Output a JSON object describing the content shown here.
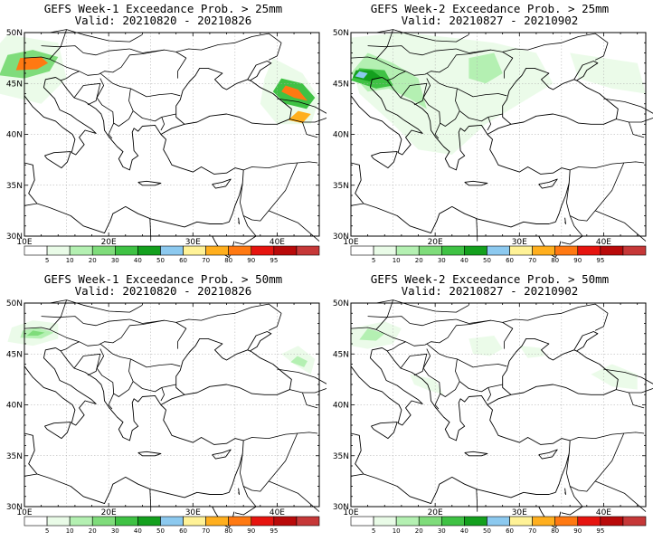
{
  "panels": [
    {
      "id": "w1-25",
      "title": "GEFS Week-1 Exceedance Prob. > 25mm",
      "valid": "Valid: 20210820 - 20210826",
      "areas": [
        {
          "pts": [
            [
              5,
              47
            ],
            [
              7,
              44
            ],
            [
              12,
              43
            ],
            [
              15,
              45.5
            ],
            [
              14,
              49
            ],
            [
              8,
              49.8
            ]
          ],
          "level": 1
        },
        {
          "pts": [
            [
              7,
              45.8
            ],
            [
              10,
              45.5
            ],
            [
              13,
              46.2
            ],
            [
              14,
              47.6
            ],
            [
              11,
              48.3
            ],
            [
              8,
              47.8
            ]
          ],
          "level": 3
        },
        {
          "pts": [
            [
              9,
              46.3
            ],
            [
              11.5,
              46.4
            ],
            [
              12.8,
              47
            ],
            [
              12,
              47.6
            ],
            [
              9.5,
              47.5
            ]
          ],
          "level": 9
        },
        {
          "pts": [
            [
              38,
              43
            ],
            [
              40,
              41
            ],
            [
              44,
              41
            ],
            [
              45,
              43.5
            ],
            [
              43,
              46
            ],
            [
              39.5,
              47.5
            ],
            [
              38.5,
              45.5
            ]
          ],
          "level": 1
        },
        {
          "pts": [
            [
              39.5,
              44.2
            ],
            [
              41,
              43
            ],
            [
              43.5,
              42.5
            ],
            [
              44.5,
              43.6
            ],
            [
              43,
              45
            ],
            [
              40.5,
              45.5
            ]
          ],
          "level": 4
        },
        {
          "pts": [
            [
              40.5,
              44.2
            ],
            [
              42,
              43.6
            ],
            [
              43.6,
              43.3
            ],
            [
              42.5,
              44.4
            ],
            [
              41,
              44.8
            ]
          ],
          "level": 9
        },
        {
          "pts": [
            [
              41.3,
              41.4
            ],
            [
              43,
              41.1
            ],
            [
              44,
              42
            ],
            [
              42.5,
              42.3
            ]
          ],
          "level": 8
        }
      ]
    },
    {
      "id": "w2-25",
      "title": "GEFS Week-2 Exceedance Prob. > 25mm",
      "valid": "Valid: 20210827 - 20210902",
      "areas": [
        {
          "pts": [
            [
              10,
              49.5
            ],
            [
              16,
              50
            ],
            [
              22,
              49.5
            ],
            [
              27,
              49
            ],
            [
              32,
              48
            ],
            [
              34,
              45
            ],
            [
              30,
              43
            ],
            [
              26,
              41
            ],
            [
              22,
              38
            ],
            [
              18,
              38.5
            ],
            [
              15,
              41
            ],
            [
              11,
              44
            ],
            [
              10,
              47
            ]
          ],
          "level": 1
        },
        {
          "pts": [
            [
              36,
              48
            ],
            [
              40,
              47.5
            ],
            [
              44,
              47
            ],
            [
              45,
              44
            ],
            [
              41,
              44.5
            ],
            [
              37,
              45.5
            ]
          ],
          "level": 1
        },
        {
          "pts": [
            [
              10,
              46
            ],
            [
              12,
              44.2
            ],
            [
              14.5,
              44.5
            ],
            [
              17,
              43.5
            ],
            [
              19,
              42.5
            ],
            [
              18,
              45.5
            ],
            [
              15,
              47
            ],
            [
              12,
              48
            ]
          ],
          "level": 2
        },
        {
          "pts": [
            [
              24,
              47.5
            ],
            [
              27,
              48
            ],
            [
              28,
              46
            ],
            [
              26,
              45
            ],
            [
              24,
              45.5
            ]
          ],
          "level": 2
        },
        {
          "pts": [
            [
              10,
              45.3
            ],
            [
              13,
              44.5
            ],
            [
              15,
              44.8
            ],
            [
              14,
              46.3
            ],
            [
              11,
              46.5
            ]
          ],
          "level": 4
        },
        {
          "pts": [
            [
              10.2,
              45.6
            ],
            [
              12.2,
              45.2
            ],
            [
              13.6,
              45.6
            ],
            [
              12.5,
              46.3
            ],
            [
              10.6,
              46.3
            ]
          ],
          "level": 5
        },
        {
          "pts": [
            [
              10.5,
              45.7
            ],
            [
              11.5,
              45.5
            ],
            [
              12,
              46
            ],
            [
              11,
              46.2
            ]
          ],
          "level": 6
        }
      ]
    },
    {
      "id": "w1-50",
      "title": "GEFS Week-1 Exceedance Prob. > 50mm",
      "valid": "Valid: 20210820 - 20210826",
      "areas": [
        {
          "pts": [
            [
              8,
              46.2
            ],
            [
              11,
              45.8
            ],
            [
              14,
              46.5
            ],
            [
              14,
              48
            ],
            [
              11,
              48.3
            ],
            [
              8.5,
              47.6
            ]
          ],
          "level": 1
        },
        {
          "pts": [
            [
              9.5,
              46.6
            ],
            [
              12,
              46.5
            ],
            [
              13.5,
              47.1
            ],
            [
              11.5,
              47.6
            ],
            [
              9.8,
              47.3
            ]
          ],
          "level": 2
        },
        {
          "pts": [
            [
              10.3,
              46.8
            ],
            [
              11.6,
              46.8
            ],
            [
              12.4,
              47.1
            ],
            [
              11,
              47.3
            ]
          ],
          "level": 3
        },
        {
          "pts": [
            [
              40.5,
              45
            ],
            [
              42,
              44
            ],
            [
              44,
              43
            ],
            [
              44.5,
              44.5
            ],
            [
              42.5,
              45.8
            ]
          ],
          "level": 1
        },
        {
          "pts": [
            [
              41.6,
              44.2
            ],
            [
              43.2,
              43.7
            ],
            [
              43.6,
              44.3
            ],
            [
              42.4,
              44.8
            ]
          ],
          "level": 2
        }
      ]
    },
    {
      "id": "w2-50",
      "title": "GEFS Week-2 Exceedance Prob. > 50mm",
      "valid": "Valid: 20210827 - 20210902",
      "areas": [
        {
          "pts": [
            [
              10,
              47.5
            ],
            [
              14,
              48.2
            ],
            [
              16,
              47.5
            ],
            [
              15,
              46
            ],
            [
              12,
              45.5
            ],
            [
              10,
              45.8
            ]
          ],
          "level": 1
        },
        {
          "pts": [
            [
              17,
              43
            ],
            [
              20,
              42.5
            ],
            [
              21,
              41
            ],
            [
              19,
              41.5
            ],
            [
              17.5,
              42
            ]
          ],
          "level": 1
        },
        {
          "pts": [
            [
              24,
              46.5
            ],
            [
              27,
              46.8
            ],
            [
              28,
              45.5
            ],
            [
              26.5,
              44.8
            ],
            [
              24.5,
              45
            ]
          ],
          "level": 1
        },
        {
          "pts": [
            [
              30,
              45.8
            ],
            [
              32.5,
              45.6
            ],
            [
              33,
              44.8
            ],
            [
              31,
              44.6
            ]
          ],
          "level": 1
        },
        {
          "pts": [
            [
              38.5,
              43
            ],
            [
              41,
              41.8
            ],
            [
              44,
              41.5
            ],
            [
              44,
              43
            ],
            [
              41,
              44
            ]
          ],
          "level": 1
        },
        {
          "pts": [
            [
              11,
              46.4
            ],
            [
              13,
              46.3
            ],
            [
              14,
              47
            ],
            [
              12,
              47.5
            ]
          ],
          "level": 2
        }
      ]
    }
  ],
  "map": {
    "lon_range": [
      10,
      45
    ],
    "lat_range": [
      30,
      50
    ],
    "lon_ticks": [
      "10E",
      "20E",
      "30E",
      "40E"
    ],
    "lat_ticks": [
      "30N",
      "35N",
      "40N",
      "45N",
      "50N"
    ]
  },
  "colorbar": {
    "colors": [
      "#ffffff",
      "#e9fbe7",
      "#b4f0b2",
      "#7fdc7b",
      "#3fc244",
      "#14a01e",
      "#8cc9ef",
      "#fff297",
      "#ffaf1e",
      "#ff7912",
      "#e6140f",
      "#b90a0a",
      "#c63838"
    ],
    "labels": [
      "5",
      "10",
      "20",
      "30",
      "40",
      "50",
      "60",
      "70",
      "80",
      "90",
      "95"
    ]
  }
}
